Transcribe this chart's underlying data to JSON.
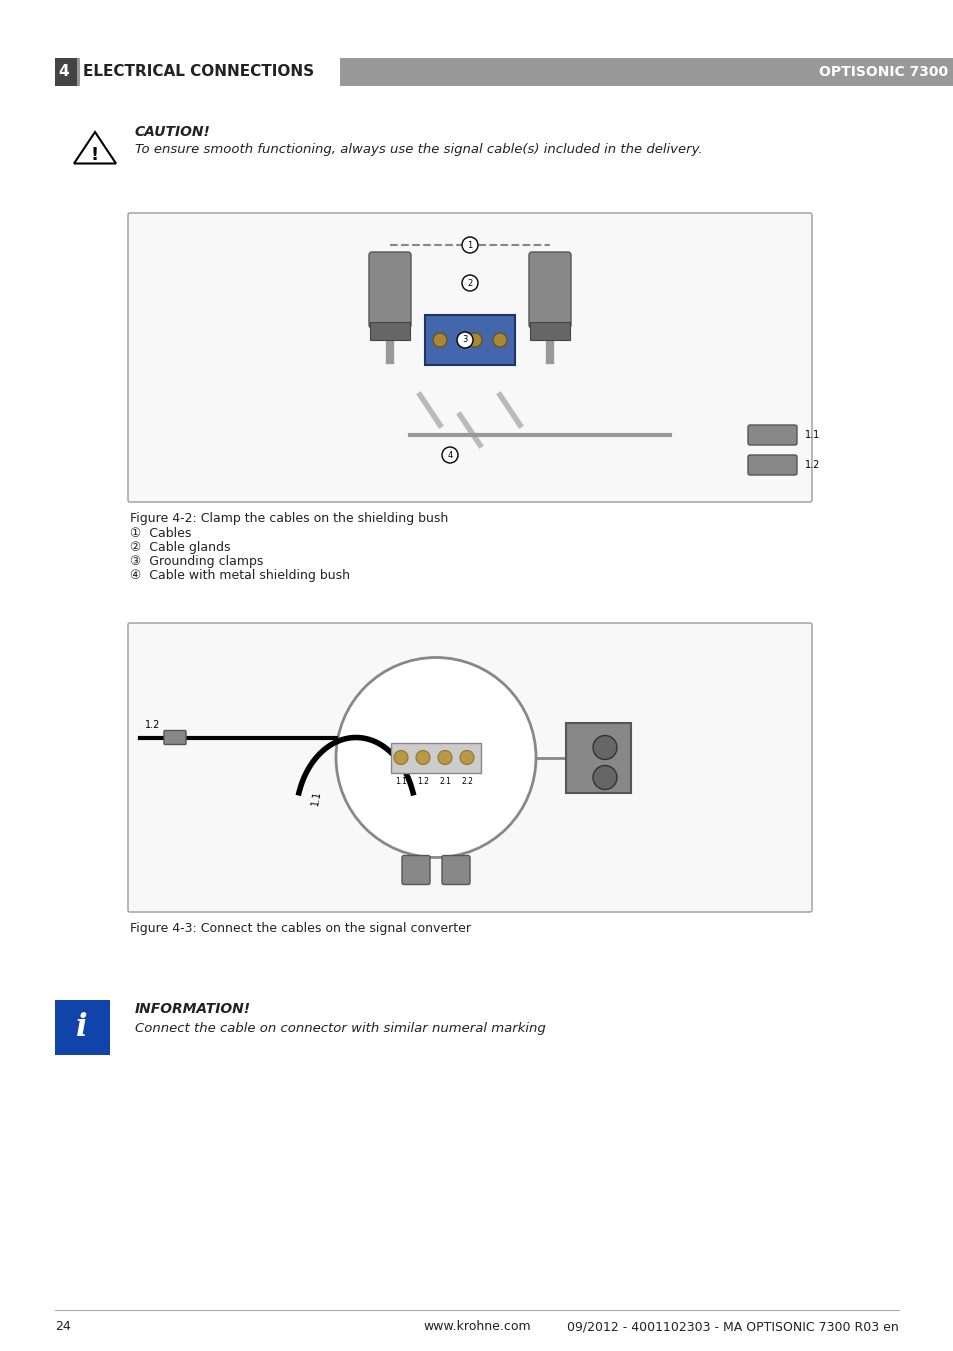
{
  "page_title": "4 ELECTRICAL CONNECTIONS",
  "page_subtitle": "OPTISONIC 7300",
  "header_bar_color": "#999999",
  "header_text_color": "#ffffff",
  "header_number_bg": "#555555",
  "background_color": "#ffffff",
  "caution_title": "CAUTION!",
  "caution_text": "To ensure smooth functioning, always use the signal cable(s) included in the delivery.",
  "fig2_caption": "Figure 4-2: Clamp the cables on the shielding bush",
  "fig2_items": [
    "①  Cables",
    "②  Cable glands",
    "③  Grounding clamps",
    "④  Cable with metal shielding bush"
  ],
  "fig3_caption": "Figure 4-3: Connect the cables on the signal converter",
  "info_title": "INFORMATION!",
  "info_text": "Connect the cable on connector with similar numeral marking",
  "footer_page": "24",
  "footer_center": "www.krohne.com",
  "footer_right": "09/2012 - 4001102303 - MA OPTISONIC 7300 R03 en",
  "box_border_color": "#aaaaaa",
  "box_bg_color": "#f5f5f5",
  "text_color": "#222222",
  "light_gray": "#cccccc",
  "dark_gray": "#666666"
}
